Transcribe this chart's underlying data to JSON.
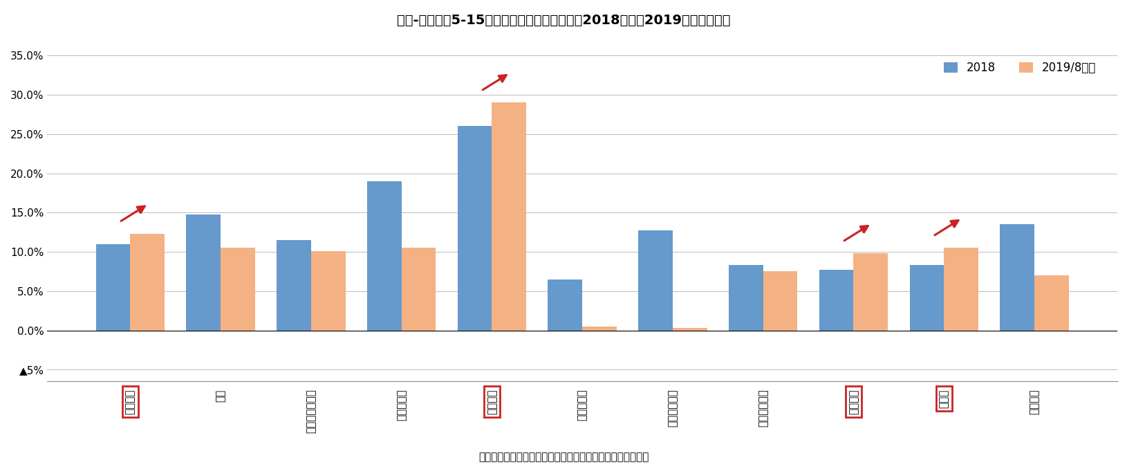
{
  "title": "図表-５　上位5-15カ国の訪日客数の増加率（2018年及び2019年１～８月）",
  "footnote": "（資料）観光庁のデータをもとにニッセイ基礎研究所が作成",
  "categories": [
    "アメリカ",
    "タイ",
    "オーストラリア",
    "フィリピン",
    "ベトナム",
    "マレーシア",
    "インドネシア",
    "シンガポール",
    "イギリス",
    "カナダ",
    "フランス"
  ],
  "values_2018": [
    11.0,
    14.8,
    11.5,
    19.0,
    26.0,
    6.5,
    12.7,
    8.3,
    7.7,
    8.3,
    13.5
  ],
  "values_2019": [
    12.3,
    10.5,
    10.1,
    10.5,
    29.0,
    0.5,
    0.3,
    7.5,
    9.8,
    10.5,
    7.0
  ],
  "color_2018": "#6699CC",
  "color_2019": "#F4B183",
  "ylim_min": -5,
  "ylim_max": 35,
  "yticks": [
    -5,
    0,
    5,
    10,
    15,
    20,
    25,
    30,
    35
  ],
  "legend_labels": [
    "2018",
    "2019/8累計"
  ],
  "boxed_indices": [
    0,
    4,
    8,
    9
  ],
  "arrow_indices": [
    0,
    4,
    8,
    9
  ],
  "box_color": "#CC2222",
  "arrow_color": "#CC2222",
  "background_color": "#FFFFFF",
  "grid_color": "#BBBBBB"
}
